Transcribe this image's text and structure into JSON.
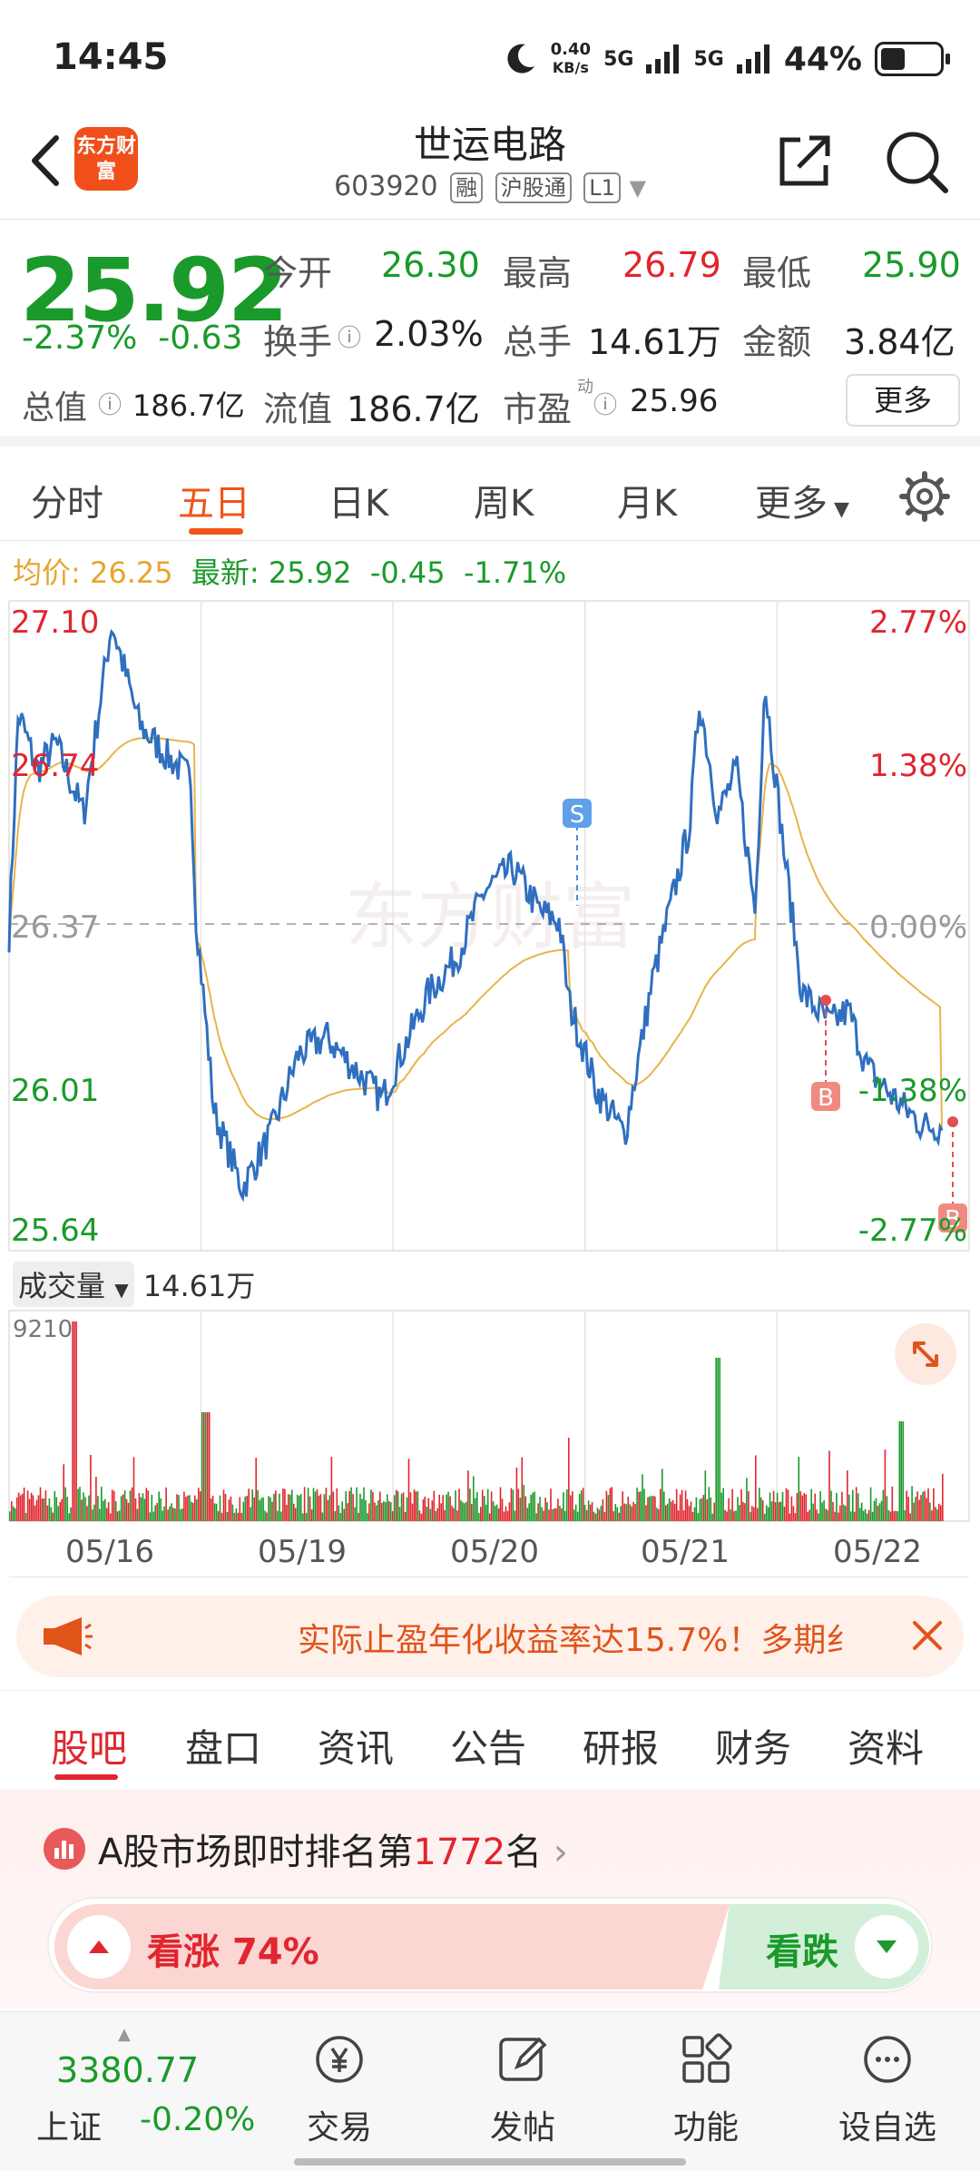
{
  "status": {
    "time": "14:45",
    "net_speed": "0.40",
    "net_unit": "KB/s",
    "sig1": "5G",
    "sig2": "5G",
    "battery": "44%"
  },
  "header": {
    "logo": "东方财富",
    "title": "世运电路",
    "code": "603920",
    "tags": [
      "融",
      "沪股通",
      "L1"
    ]
  },
  "quote": {
    "price": "25.92",
    "change_pct": "-2.37%",
    "change": "-0.63",
    "open_label": "今开",
    "open": "26.30",
    "high_label": "最高",
    "high": "26.79",
    "low_label": "最低",
    "low": "25.90",
    "turnover_label": "换手",
    "turnover": "2.03%",
    "volume_label": "总手",
    "volume": "14.61万",
    "amount_label": "金额",
    "amount": "3.84亿",
    "mcap_label": "总值",
    "mcap": "186.7亿",
    "float_label": "流值",
    "float": "186.7亿",
    "pe_label": "市盈",
    "pe_sup": "动",
    "pe": "25.96",
    "more": "更多"
  },
  "tabs": [
    "分时",
    "五日",
    "日K",
    "周K",
    "月K",
    "更多"
  ],
  "avgline": {
    "avg_label": "均价:",
    "avg": "26.25",
    "new_label": "最新:",
    "new": "25.92",
    "chg": "-0.45",
    "pct": "-1.71%"
  },
  "chart_data": {
    "type": "line",
    "y_ticks": [
      "27.10",
      "26.74",
      "26.37",
      "26.01",
      "25.64"
    ],
    "pct_ticks": [
      "2.77%",
      "1.38%",
      "0.00%",
      "-1.38%",
      "-2.77%"
    ],
    "ylim": [
      25.64,
      27.1
    ],
    "dates": [
      "05/16",
      "05/19",
      "05/20",
      "05/21",
      "05/22"
    ],
    "markers": [
      "S",
      "B",
      "B"
    ],
    "series": [],
    "volume_label": "成交量",
    "volume_total": "14.61万",
    "volume_max": "9210"
  },
  "banner": {
    "text": "实际止盈年化收益率达15.7%！多期纟"
  },
  "section_tabs": [
    "股吧",
    "盘口",
    "资讯",
    "公告",
    "研报",
    "财务",
    "资料"
  ],
  "rank": {
    "prefix": "A股市场即时排名第",
    "num": "1772",
    "suffix": "名"
  },
  "vote": {
    "up": "看涨",
    "up_pct": "74%",
    "down": "看跌"
  },
  "bottom": {
    "index_value": "3380.77",
    "index_name": "上证",
    "index_chg": "-0.20%",
    "items": [
      "交易",
      "发帖",
      "功能",
      "设自选"
    ]
  },
  "colors": {
    "up": "#e0262e",
    "down": "#1a9a2a",
    "accent": "#f0541a",
    "avg_line": "#e8a42e",
    "price_line": "#2f6fbf"
  }
}
